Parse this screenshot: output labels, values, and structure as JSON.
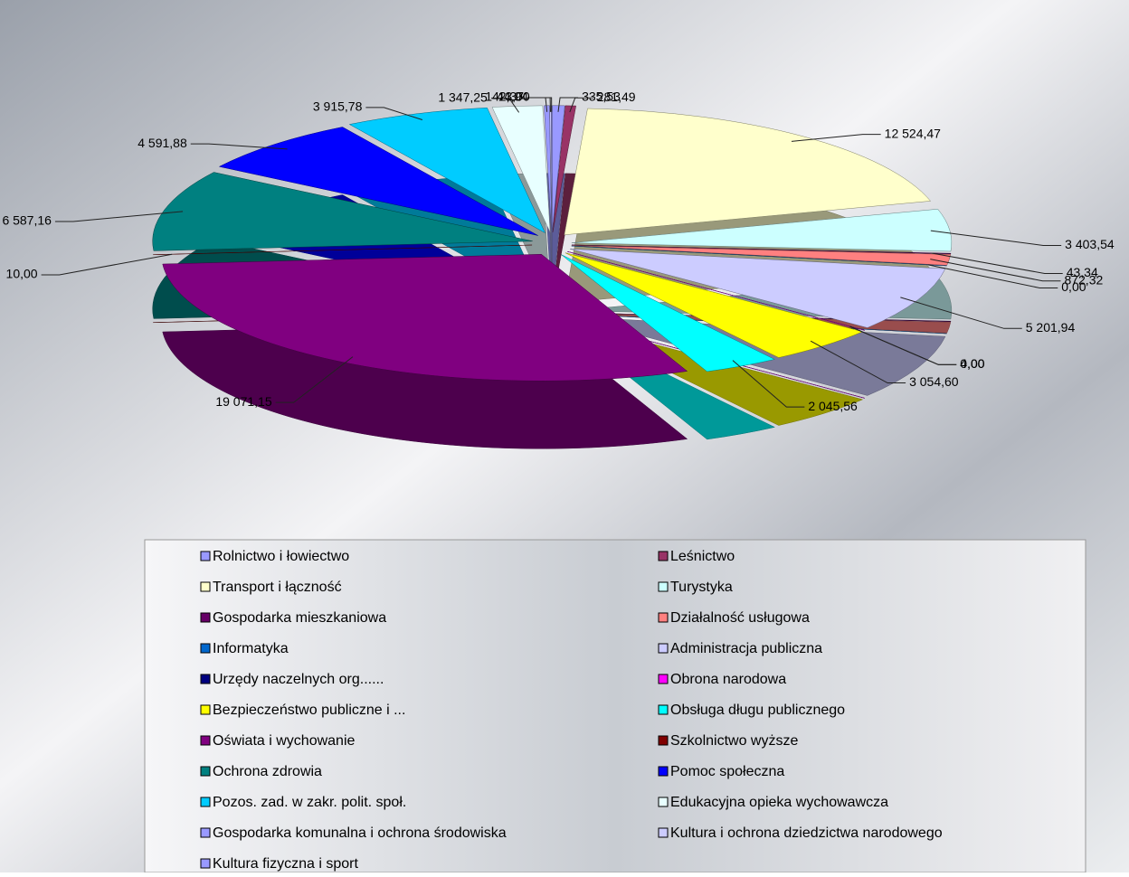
{
  "chart_data": {
    "type": "pie",
    "categories": [
      "Rolnictwo i łowiectwo",
      "Leśnictwo",
      "Transport i łączność",
      "Turystyka",
      "Gospodarka mieszkaniowa",
      "Działalność usługowa",
      "Informatyka",
      "Administracja publiczna",
      "Urzędy naczelnych org......",
      "Obrona narodowa",
      "Bezpieczeństwo publiczne i ...",
      "Obsługa długu publicznego",
      "Oświata i wychowanie",
      "Szkolnictwo wyższe",
      "Ochrona zdrowia",
      "Pomoc społeczna",
      "Pozos. zad. w zakr. polit. społ.",
      "Edukacyjna opieka wychowawcza",
      "Gospodarka komunalna i ochrona środowiska",
      "Kultura i ochrona dziedzictwa narodowego",
      "Kultura fizyczna i sport"
    ],
    "values": [
      335.53,
      281.49,
      12524.47,
      3403.54,
      43.34,
      872.32,
      0,
      5201.94,
      0,
      4,
      3054.6,
      2045.56,
      19071.15,
      10,
      6587.16,
      4591.88,
      3915.78,
      1347.25,
      142.37,
      44.94,
      13
    ],
    "value_labels": [
      "335,53",
      "281,49",
      "12 524,47",
      "3 403,54",
      "43,34",
      "872,32",
      "0,00",
      "5 201,94",
      "0,00",
      "4,00",
      "3 054,60",
      "2 045,56",
      "19 071,15",
      "10,00",
      "6 587,16",
      "4 591,88",
      "3 915,78",
      "1 347,25",
      "142,37",
      "44,94",
      "13,00"
    ],
    "colors": [
      "#9999ff",
      "#993366",
      "#ffffcc",
      "#ccffff",
      "#660066",
      "#ff8080",
      "#0066cc",
      "#ccccff",
      "#000080",
      "#ff00ff",
      "#ffff00",
      "#00ffff",
      "#800080",
      "#800000",
      "#008080",
      "#0000ff",
      "#00ccff",
      "#e8ffff",
      "#9999ff",
      "#ccccff",
      "#9999ff"
    ],
    "legend": "bottom"
  }
}
